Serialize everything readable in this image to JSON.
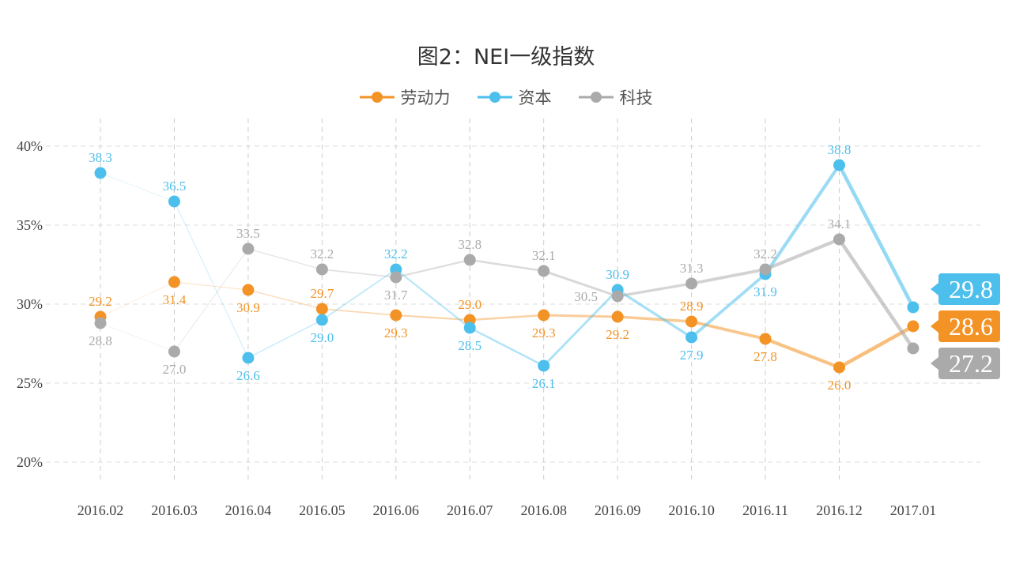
{
  "chart_data": {
    "type": "line",
    "title": "图2：NEI一级指数",
    "xlabel": "",
    "ylabel": "",
    "categories": [
      "2016.02",
      "2016.03",
      "2016.04",
      "2016.05",
      "2016.06",
      "2016.07",
      "2016.08",
      "2016.09",
      "2016.10",
      "2016.11",
      "2016.12",
      "2017.01"
    ],
    "ylim": [
      20,
      40
    ],
    "yticks": [
      "20%",
      "25%",
      "30%",
      "35%",
      "40%"
    ],
    "ytick_values": [
      20,
      25,
      30,
      35,
      40
    ],
    "grid": true,
    "legend_placement": "top-center",
    "series": [
      {
        "name": "劳动力",
        "color": "#f39325",
        "values": [
          29.2,
          31.4,
          30.9,
          29.7,
          29.3,
          29.0,
          29.3,
          29.2,
          28.9,
          27.8,
          26.0,
          28.6
        ],
        "labels": [
          "29.2",
          "31.4",
          "30.9",
          "29.7",
          "29.3",
          "29.0",
          "29.3",
          "29.2",
          "28.9",
          "27.8",
          "26.0",
          "28.6"
        ],
        "label_pos": [
          "above",
          "below",
          "below",
          "above",
          "below",
          "above",
          "below",
          "below",
          "above",
          "below",
          "below",
          "callout"
        ]
      },
      {
        "name": "资本",
        "color": "#4dbfed",
        "values": [
          38.3,
          36.5,
          26.6,
          29.0,
          32.2,
          28.5,
          26.1,
          30.9,
          27.9,
          31.9,
          38.8,
          29.8
        ],
        "labels": [
          "38.3",
          "36.5",
          "26.6",
          "29.0",
          "32.2",
          "28.5",
          "26.1",
          "30.9",
          "27.9",
          "31.9",
          "38.8",
          "29.8"
        ],
        "label_pos": [
          "above",
          "above",
          "below",
          "below",
          "above",
          "below",
          "below",
          "above",
          "below",
          "below",
          "above",
          "callout"
        ]
      },
      {
        "name": "科技",
        "color": "#aaaaaa",
        "values": [
          28.8,
          27.0,
          33.5,
          32.2,
          31.7,
          32.8,
          32.1,
          30.5,
          31.3,
          32.2,
          34.1,
          27.2
        ],
        "labels": [
          "28.8",
          "27.0",
          "33.5",
          "32.2",
          "31.7",
          "32.8",
          "32.1",
          "30.5",
          "31.3",
          "32.2",
          "34.1",
          "27.2"
        ],
        "label_pos": [
          "below",
          "below",
          "above",
          "above",
          "below",
          "above",
          "above",
          "left",
          "above",
          "above",
          "above",
          "callout"
        ]
      }
    ]
  }
}
